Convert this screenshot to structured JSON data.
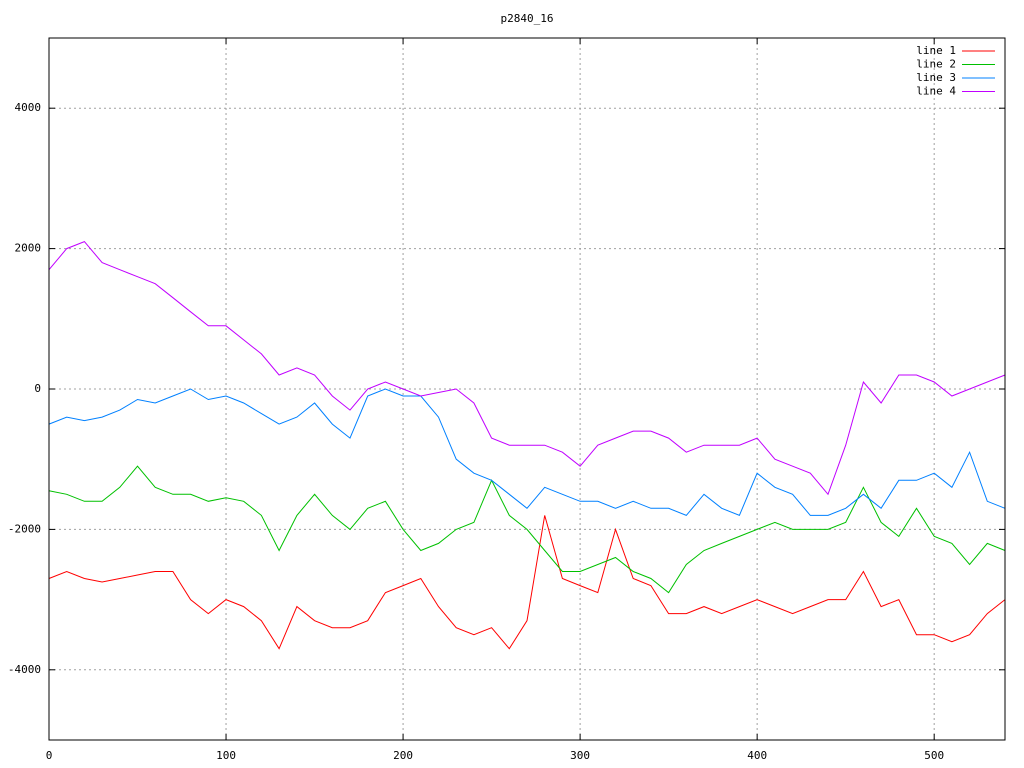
{
  "chart_data": {
    "type": "line",
    "title": "p2840_16",
    "x": [
      0,
      10,
      20,
      30,
      40,
      50,
      60,
      70,
      80,
      90,
      100,
      110,
      120,
      130,
      140,
      150,
      160,
      170,
      180,
      190,
      200,
      210,
      220,
      230,
      240,
      250,
      260,
      270,
      280,
      290,
      300,
      310,
      320,
      330,
      340,
      350,
      360,
      370,
      380,
      390,
      400,
      410,
      420,
      430,
      440,
      450,
      460,
      470,
      480,
      490,
      500,
      510,
      520,
      530,
      540
    ],
    "series": [
      {
        "name": "line 1",
        "color": "#ff0000",
        "values": [
          -2700,
          -2600,
          -2700,
          -2750,
          -2700,
          -2650,
          -2600,
          -2600,
          -3000,
          -3200,
          -3000,
          -3100,
          -3300,
          -3700,
          -3100,
          -3300,
          -3400,
          -3400,
          -3300,
          -2900,
          -2800,
          -2700,
          -3100,
          -3400,
          -3500,
          -3400,
          -3700,
          -3300,
          -1800,
          -2700,
          -2800,
          -2900,
          -2000,
          -2700,
          -2800,
          -3200,
          -3200,
          -3100,
          -3200,
          -3100,
          -3000,
          -3100,
          -3200,
          -3100,
          -3000,
          -3000,
          -2600,
          -3100,
          -3000,
          -3500,
          -3500,
          -3600,
          -3500,
          -3200,
          -3000
        ]
      },
      {
        "name": "line 2",
        "color": "#00c000",
        "values": [
          -1450,
          -1500,
          -1600,
          -1600,
          -1400,
          -1100,
          -1400,
          -1500,
          -1500,
          -1600,
          -1550,
          -1600,
          -1800,
          -2300,
          -1800,
          -1500,
          -1800,
          -2000,
          -1700,
          -1600,
          -2000,
          -2300,
          -2200,
          -2000,
          -1900,
          -1300,
          -1800,
          -2000,
          -2300,
          -2600,
          -2600,
          -2500,
          -2400,
          -2600,
          -2700,
          -2900,
          -2500,
          -2300,
          -2200,
          -2100,
          -2000,
          -1900,
          -2000,
          -2000,
          -2000,
          -1900,
          -1400,
          -1900,
          -2100,
          -1700,
          -2100,
          -2200,
          -2500,
          -2200,
          -2300
        ]
      },
      {
        "name": "line 3",
        "color": "#0080ff",
        "values": [
          -500,
          -400,
          -450,
          -400,
          -300,
          -150,
          -200,
          -100,
          0,
          -150,
          -100,
          -200,
          -350,
          -500,
          -400,
          -200,
          -500,
          -700,
          -100,
          0,
          -100,
          -100,
          -400,
          -1000,
          -1200,
          -1300,
          -1500,
          -1700,
          -1400,
          -1500,
          -1600,
          -1600,
          -1700,
          -1600,
          -1700,
          -1700,
          -1800,
          -1500,
          -1700,
          -1800,
          -1200,
          -1400,
          -1500,
          -1800,
          -1800,
          -1700,
          -1500,
          -1700,
          -1300,
          -1300,
          -1200,
          -1400,
          -900,
          -1600,
          -1700
        ]
      },
      {
        "name": "line 4",
        "color": "#c000ff",
        "values": [
          1700,
          2000,
          2100,
          1800,
          1700,
          1600,
          1500,
          1300,
          1100,
          900,
          900,
          700,
          500,
          200,
          300,
          200,
          -100,
          -300,
          0,
          100,
          0,
          -100,
          -50,
          0,
          -200,
          -700,
          -800,
          -800,
          -800,
          -900,
          -1100,
          -800,
          -700,
          -600,
          -600,
          -700,
          -900,
          -800,
          -800,
          -800,
          -700,
          -1000,
          -1100,
          -1200,
          -1500,
          -800,
          100,
          -200,
          200,
          200,
          100,
          -100,
          0,
          100,
          200
        ]
      }
    ],
    "xlim": [
      0,
      540
    ],
    "ylim": [
      -5000,
      5000
    ],
    "xticks": [
      0,
      100,
      200,
      300,
      400,
      500
    ],
    "yticks": [
      -4000,
      -2000,
      0,
      2000,
      4000
    ],
    "grid": true,
    "legend": "top-right"
  }
}
